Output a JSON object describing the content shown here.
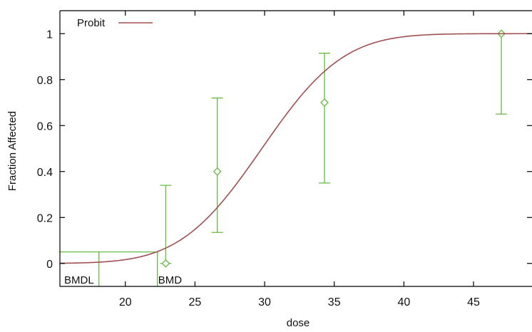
{
  "chart_data": {
    "type": "line",
    "title": "",
    "xlabel": "dose",
    "ylabel": "Fraction Affected",
    "xlim": [
      15.3,
      49.2
    ],
    "ylim": [
      -0.1,
      1.1
    ],
    "xticks": [
      20,
      25,
      30,
      35,
      40,
      45
    ],
    "xtick_labels": [
      "20",
      "25",
      "30",
      "35",
      "40",
      "45"
    ],
    "yticks": [
      0,
      0.2,
      0.4,
      0.6,
      0.8,
      1
    ],
    "ytick_labels": [
      "0",
      "0.2",
      "0.4",
      "0.6",
      "0.8",
      "1"
    ],
    "grid": false,
    "legend": {
      "placement": "top-left",
      "entries": [
        "Probit"
      ]
    },
    "colors": {
      "model": "#a05050",
      "data": "#66bb44",
      "axis": "#000000"
    },
    "model": {
      "name": "Probit",
      "form": "probit",
      "mu": 29.8,
      "sigma": 4.6
    },
    "observations": [
      {
        "dose": 22.9,
        "response": 0.0,
        "lower": 0.0,
        "upper": 0.34
      },
      {
        "dose": 26.6,
        "response": 0.4,
        "lower": 0.135,
        "upper": 0.72
      },
      {
        "dose": 34.3,
        "response": 0.7,
        "lower": 0.35,
        "upper": 0.915
      },
      {
        "dose": 47.0,
        "response": 1.0,
        "lower": 0.65,
        "upper": 1.0
      }
    ],
    "benchmark": {
      "bmr_level": 0.05,
      "bmdl": 18.1,
      "bmd": 22.3,
      "bmdl_label": "BMDL",
      "bmd_label": "BMD"
    }
  }
}
